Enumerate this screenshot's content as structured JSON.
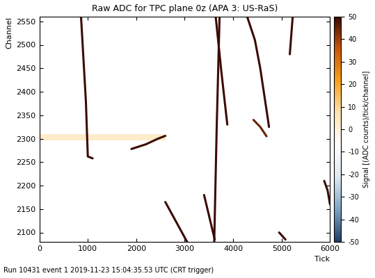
{
  "chart_data": {
    "type": "heatmap",
    "title": "Raw ADC for TPC plane 0z (APA 3: US-RaS)",
    "x_label": "Tick",
    "y_label": "Channel",
    "footer": "Run 10431 event 1 2019-11-23 15:04:35.53 UTC (CRT trigger)",
    "xlim": [
      0,
      6000
    ],
    "xticks": [
      0,
      1000,
      2000,
      3000,
      4000,
      5000,
      6000
    ],
    "ylim": [
      2080,
      2560
    ],
    "yticks": [
      2100,
      2150,
      2200,
      2250,
      2300,
      2350,
      2400,
      2450,
      2500,
      2550
    ],
    "colorbar": {
      "label": "Signal [(ADC counts)/tick/channel]",
      "range": [
        -50,
        50
      ],
      "ticks": [
        -50,
        -40,
        -30,
        -20,
        -10,
        0,
        10,
        20,
        30,
        40,
        50
      ]
    },
    "bands": [
      {
        "x": [
          0,
          2600
        ],
        "y": [
          2297,
          2310
        ],
        "value": 8
      },
      {
        "x": [
          2600,
          5000
        ],
        "y": [
          2297,
          2310
        ],
        "value": -8
      }
    ],
    "tracks": [
      {
        "x": [
          860,
          960,
          1000,
          1100
        ],
        "y": [
          2560,
          2380,
          2262,
          2258
        ],
        "value": 50
      },
      {
        "x": [
          1900,
          2200,
          2450,
          2600
        ],
        "y": [
          2278,
          2288,
          2300,
          2306
        ],
        "value": 50
      },
      {
        "x": [
          3720,
          3660,
          3610
        ],
        "y": [
          2560,
          2320,
          2080
        ],
        "value": 50
      },
      {
        "x": [
          3640,
          3760,
          3880
        ],
        "y": [
          2560,
          2440,
          2330
        ],
        "value": 50
      },
      {
        "x": [
          3400,
          3620
        ],
        "y": [
          2180,
          2085
        ],
        "value": 50
      },
      {
        "x": [
          2600,
          3050
        ],
        "y": [
          2165,
          2080
        ],
        "value": 50
      },
      {
        "x": [
          4290,
          4450,
          4560,
          4720,
          4740
        ],
        "y": [
          2560,
          2510,
          2450,
          2340,
          2325
        ],
        "value": 50
      },
      {
        "x": [
          4420,
          4560,
          4690
        ],
        "y": [
          2340,
          2325,
          2305
        ],
        "value": 45
      },
      {
        "x": [
          5230,
          5200,
          5170
        ],
        "y": [
          2560,
          2520,
          2480
        ],
        "value": 50
      },
      {
        "x": [
          4950,
          5080
        ],
        "y": [
          2100,
          2085
        ],
        "value": 50
      },
      {
        "x": [
          5880,
          5950,
          6000
        ],
        "y": [
          2210,
          2190,
          2160
        ],
        "value": 50
      }
    ]
  }
}
